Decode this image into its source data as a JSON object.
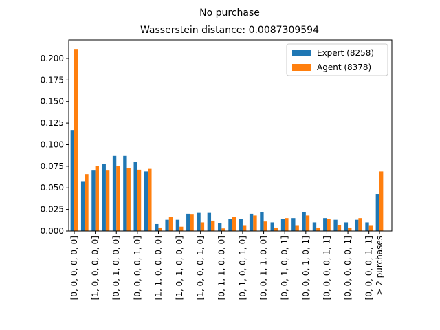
{
  "chart_data": {
    "type": "bar",
    "title": "No purchase",
    "subtitle": "Wasserstein distance: 0.0087309594",
    "categories": [
      "[0, 0, 0, 0, 0, 0]",
      null,
      "[1, 0, 0, 0, 0, 0]",
      null,
      "[0, 0, 1, 0, 0, 0]",
      null,
      "[0, 0, 0, 0, 1, 0]",
      null,
      "[1, 1, 0, 0, 0, 0]",
      null,
      "[1, 0, 1, 0, 0, 0]",
      null,
      "[1, 0, 0, 0, 1, 0]",
      null,
      "[0, 1, 1, 0, 0, 0]",
      null,
      "[0, 1, 0, 0, 1, 0]",
      null,
      "[0, 0, 1, 1, 0, 0]",
      null,
      "[0, 0, 1, 0, 0, 1]",
      null,
      "[0, 0, 0, 1, 0, 1]",
      null,
      "[0, 0, 0, 0, 1, 1]",
      null,
      "[0, 0, 0, 0, 0, 1]",
      null,
      "[0, 0, 0, 0, 1, 1]",
      "> 2 purchases"
    ],
    "series": [
      {
        "name": "Expert (8258)",
        "color": "#1f77b4",
        "values": [
          0.117,
          0.057,
          0.07,
          0.078,
          0.087,
          0.087,
          0.08,
          0.069,
          0.008,
          0.013,
          0.013,
          0.02,
          0.021,
          0.021,
          0.009,
          0.014,
          0.014,
          0.02,
          0.022,
          0.01,
          0.014,
          0.015,
          0.022,
          0.01,
          0.015,
          0.013,
          0.01,
          0.013,
          0.01,
          0.043
        ]
      },
      {
        "name": "Agent (8378)",
        "color": "#ff7f0e",
        "values": [
          0.211,
          0.066,
          0.075,
          0.07,
          0.075,
          0.073,
          0.071,
          0.072,
          0.004,
          0.016,
          0.005,
          0.019,
          0.01,
          0.012,
          0.003,
          0.016,
          0.006,
          0.018,
          0.011,
          0.004,
          0.015,
          0.006,
          0.018,
          0.004,
          0.014,
          0.007,
          0.004,
          0.015,
          0.006,
          0.069
        ]
      }
    ],
    "ylim": [
      0,
      0.2215
    ],
    "yticks": [
      {
        "value": 0,
        "label": "0.000"
      },
      {
        "value": 0.025,
        "label": "0.025"
      },
      {
        "value": 0.05,
        "label": "0.050"
      },
      {
        "value": 0.075,
        "label": "0.075"
      },
      {
        "value": 0.1,
        "label": "0.100"
      },
      {
        "value": 0.125,
        "label": "0.125"
      },
      {
        "value": 0.15,
        "label": "0.150"
      },
      {
        "value": 0.175,
        "label": "0.175"
      },
      {
        "value": 0.2,
        "label": "0.200"
      }
    ],
    "legend": "upper right"
  }
}
